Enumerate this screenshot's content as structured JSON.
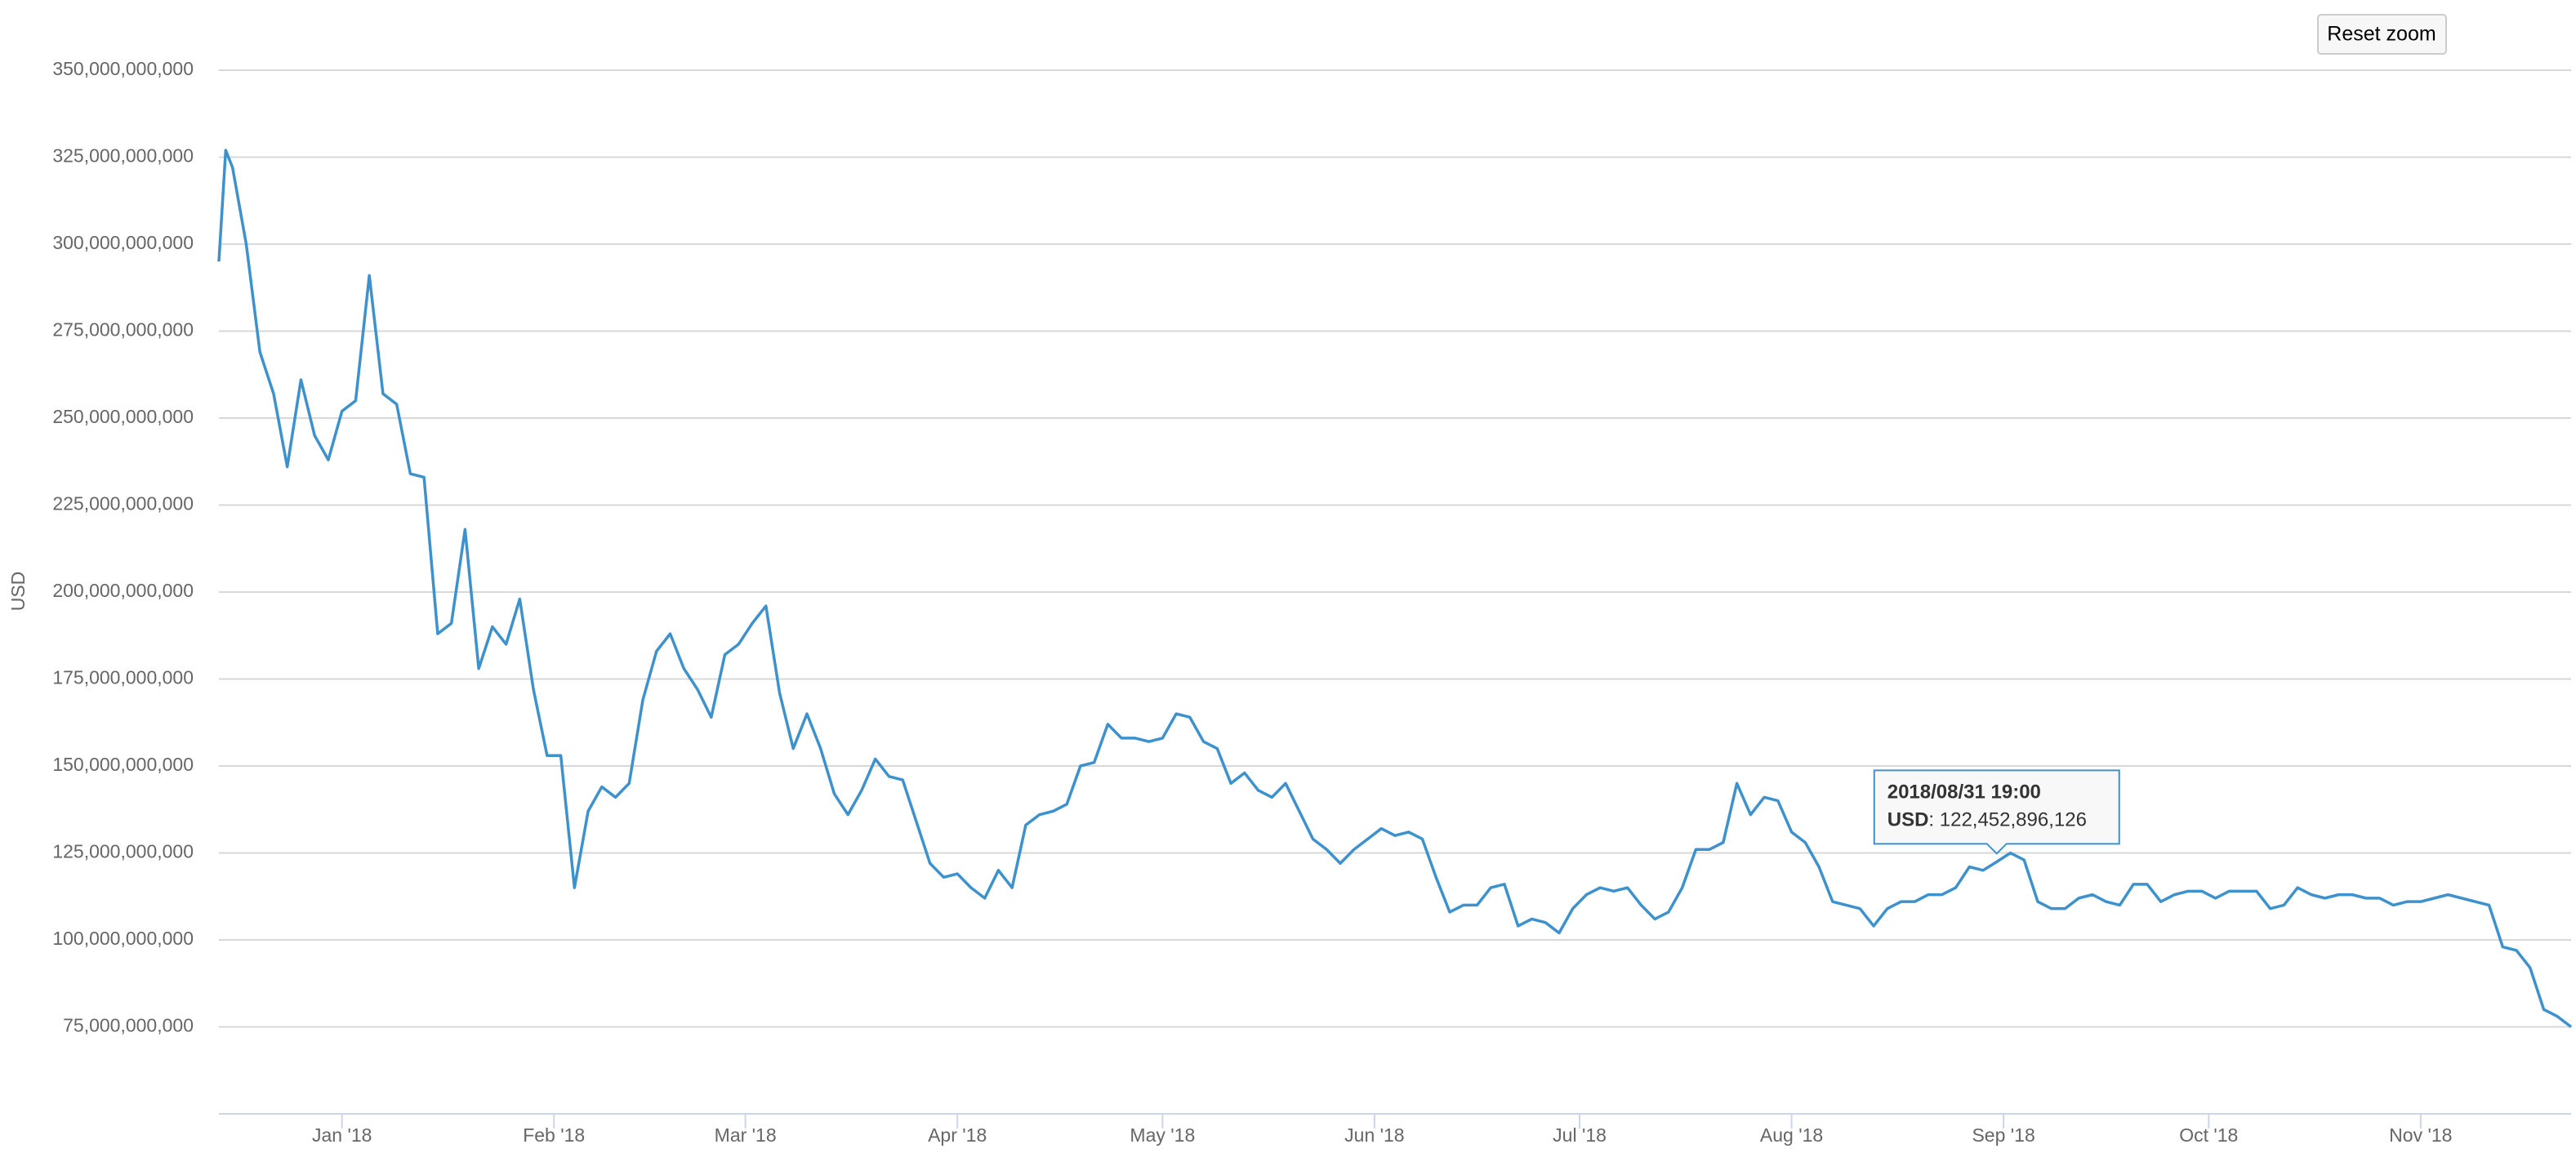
{
  "chart_data": {
    "type": "line",
    "y_label": "USD",
    "reset_button": "Reset zoom",
    "tooltip": {
      "x": "2018/08/31 19:00",
      "point": "2018/08/31",
      "value": 122452896126,
      "value_label": "122,452,896,126"
    },
    "x": [
      "2017/12/14",
      "2017/12/15",
      "2017/12/16",
      "2017/12/18",
      "2017/12/20",
      "2017/12/22",
      "2017/12/24",
      "2017/12/26",
      "2017/12/28",
      "2017/12/30",
      "2018/01/01",
      "2018/01/03",
      "2018/01/05",
      "2018/01/07",
      "2018/01/09",
      "2018/01/11",
      "2018/01/13",
      "2018/01/15",
      "2018/01/17",
      "2018/01/19",
      "2018/01/21",
      "2018/01/23",
      "2018/01/25",
      "2018/01/27",
      "2018/01/29",
      "2018/01/31",
      "2018/02/02",
      "2018/02/04",
      "2018/02/06",
      "2018/02/08",
      "2018/02/10",
      "2018/02/12",
      "2018/02/14",
      "2018/02/16",
      "2018/02/18",
      "2018/02/20",
      "2018/02/22",
      "2018/02/24",
      "2018/02/26",
      "2018/02/28",
      "2018/03/02",
      "2018/03/04",
      "2018/03/06",
      "2018/03/08",
      "2018/03/10",
      "2018/03/12",
      "2018/03/14",
      "2018/03/16",
      "2018/03/18",
      "2018/03/20",
      "2018/03/22",
      "2018/03/24",
      "2018/03/26",
      "2018/03/28",
      "2018/03/30",
      "2018/04/01",
      "2018/04/03",
      "2018/04/05",
      "2018/04/07",
      "2018/04/09",
      "2018/04/11",
      "2018/04/13",
      "2018/04/15",
      "2018/04/17",
      "2018/04/19",
      "2018/04/21",
      "2018/04/23",
      "2018/04/25",
      "2018/04/27",
      "2018/04/29",
      "2018/05/01",
      "2018/05/03",
      "2018/05/05",
      "2018/05/07",
      "2018/05/09",
      "2018/05/11",
      "2018/05/13",
      "2018/05/15",
      "2018/05/17",
      "2018/05/19",
      "2018/05/21",
      "2018/05/23",
      "2018/05/25",
      "2018/05/27",
      "2018/05/29",
      "2018/05/31",
      "2018/06/02",
      "2018/06/04",
      "2018/06/06",
      "2018/06/08",
      "2018/06/10",
      "2018/06/12",
      "2018/06/14",
      "2018/06/16",
      "2018/06/18",
      "2018/06/20",
      "2018/06/22",
      "2018/06/24",
      "2018/06/26",
      "2018/06/28",
      "2018/06/30",
      "2018/07/02",
      "2018/07/04",
      "2018/07/06",
      "2018/07/08",
      "2018/07/10",
      "2018/07/12",
      "2018/07/14",
      "2018/07/16",
      "2018/07/18",
      "2018/07/20",
      "2018/07/22",
      "2018/07/24",
      "2018/07/26",
      "2018/07/28",
      "2018/07/30",
      "2018/08/01",
      "2018/08/03",
      "2018/08/05",
      "2018/08/07",
      "2018/08/09",
      "2018/08/11",
      "2018/08/13",
      "2018/08/15",
      "2018/08/17",
      "2018/08/19",
      "2018/08/21",
      "2018/08/23",
      "2018/08/25",
      "2018/08/27",
      "2018/08/29",
      "2018/08/31",
      "2018/09/02",
      "2018/09/04",
      "2018/09/06",
      "2018/09/08",
      "2018/09/10",
      "2018/09/12",
      "2018/09/14",
      "2018/09/16",
      "2018/09/18",
      "2018/09/20",
      "2018/09/22",
      "2018/09/24",
      "2018/09/26",
      "2018/09/28",
      "2018/09/30",
      "2018/10/02",
      "2018/10/04",
      "2018/10/06",
      "2018/10/08",
      "2018/10/10",
      "2018/10/12",
      "2018/10/14",
      "2018/10/16",
      "2018/10/18",
      "2018/10/20",
      "2018/10/22",
      "2018/10/24",
      "2018/10/26",
      "2018/10/28",
      "2018/10/30",
      "2018/11/01",
      "2018/11/03",
      "2018/11/05",
      "2018/11/07",
      "2018/11/09",
      "2018/11/11",
      "2018/11/13",
      "2018/11/15",
      "2018/11/17",
      "2018/11/19",
      "2018/11/21",
      "2018/11/23"
    ],
    "series": [
      {
        "name": "USD",
        "color": "#3d91cc",
        "values": [
          295000000000,
          327000000000,
          322000000000,
          300000000000,
          269000000000,
          257000000000,
          236000000000,
          261000000000,
          245000000000,
          238000000000,
          252000000000,
          255000000000,
          291000000000,
          257000000000,
          254000000000,
          234000000000,
          233000000000,
          188000000000,
          191000000000,
          218000000000,
          178000000000,
          190000000000,
          185000000000,
          198000000000,
          172000000000,
          153000000000,
          153000000000,
          115000000000,
          137000000000,
          144000000000,
          141000000000,
          145000000000,
          169000000000,
          183000000000,
          188000000000,
          178000000000,
          172000000000,
          164000000000,
          182000000000,
          185000000000,
          191000000000,
          196000000000,
          171000000000,
          155000000000,
          165000000000,
          155000000000,
          142000000000,
          136000000000,
          143000000000,
          152000000000,
          147000000000,
          146000000000,
          134000000000,
          122000000000,
          118000000000,
          119000000000,
          115000000000,
          112000000000,
          120000000000,
          115000000000,
          133000000000,
          136000000000,
          137000000000,
          139000000000,
          150000000000,
          151000000000,
          162000000000,
          158000000000,
          158000000000,
          157000000000,
          158000000000,
          165000000000,
          164000000000,
          157000000000,
          155000000000,
          145000000000,
          148000000000,
          143000000000,
          141000000000,
          145000000000,
          137000000000,
          129000000000,
          126000000000,
          122000000000,
          126000000000,
          129000000000,
          132000000000,
          130000000000,
          131000000000,
          129000000000,
          118000000000,
          108000000000,
          110000000000,
          110000000000,
          115000000000,
          116000000000,
          104000000000,
          106000000000,
          105000000000,
          102000000000,
          109000000000,
          113000000000,
          115000000000,
          114000000000,
          115000000000,
          110000000000,
          106000000000,
          108000000000,
          115000000000,
          126000000000,
          126000000000,
          128000000000,
          145000000000,
          136000000000,
          141000000000,
          140000000000,
          131000000000,
          128000000000,
          121000000000,
          111000000000,
          110000000000,
          109000000000,
          104000000000,
          109000000000,
          111000000000,
          111000000000,
          113000000000,
          113000000000,
          115000000000,
          121000000000,
          120000000000,
          122452896126,
          125000000000,
          123000000000,
          111000000000,
          109000000000,
          109000000000,
          112000000000,
          113000000000,
          111000000000,
          110000000000,
          116000000000,
          116000000000,
          111000000000,
          113000000000,
          114000000000,
          114000000000,
          112000000000,
          114000000000,
          114000000000,
          114000000000,
          109000000000,
          110000000000,
          115000000000,
          113000000000,
          112000000000,
          113000000000,
          113000000000,
          112000000000,
          112000000000,
          110000000000,
          111000000000,
          111000000000,
          112000000000,
          113000000000,
          112000000000,
          111000000000,
          110000000000,
          98000000000,
          97000000000,
          92000000000,
          80000000000,
          78000000000,
          75000000000
        ]
      }
    ],
    "xlim": [
      "2017/12/14",
      "2018/11/23"
    ],
    "xticks": [
      {
        "value": "2018/01/01",
        "label": "Jan '18"
      },
      {
        "value": "2018/02/01",
        "label": "Feb '18"
      },
      {
        "value": "2018/03/01",
        "label": "Mar '18"
      },
      {
        "value": "2018/04/01",
        "label": "Apr '18"
      },
      {
        "value": "2018/05/01",
        "label": "May '18"
      },
      {
        "value": "2018/06/01",
        "label": "Jun '18"
      },
      {
        "value": "2018/07/01",
        "label": "Jul '18"
      },
      {
        "value": "2018/08/01",
        "label": "Aug '18"
      },
      {
        "value": "2018/09/01",
        "label": "Sep '18"
      },
      {
        "value": "2018/10/01",
        "label": "Oct '18"
      },
      {
        "value": "2018/11/01",
        "label": "Nov '18"
      }
    ],
    "ylim": [
      50000000000,
      350000000000
    ],
    "yticks": [
      {
        "value": 75000000000,
        "label": "75,000,000,000"
      },
      {
        "value": 100000000000,
        "label": "100,000,000,000"
      },
      {
        "value": 125000000000,
        "label": "125,000,000,000"
      },
      {
        "value": 150000000000,
        "label": "150,000,000,000"
      },
      {
        "value": 175000000000,
        "label": "175,000,000,000"
      },
      {
        "value": 200000000000,
        "label": "200,000,000,000"
      },
      {
        "value": 225000000000,
        "label": "225,000,000,000"
      },
      {
        "value": 250000000000,
        "label": "250,000,000,000"
      },
      {
        "value": 275000000000,
        "label": "275,000,000,000"
      },
      {
        "value": 300000000000,
        "label": "300,000,000,000"
      },
      {
        "value": 325000000000,
        "label": "325,000,000,000"
      },
      {
        "value": 350000000000,
        "label": "350,000,000,000"
      }
    ],
    "grid": true
  }
}
